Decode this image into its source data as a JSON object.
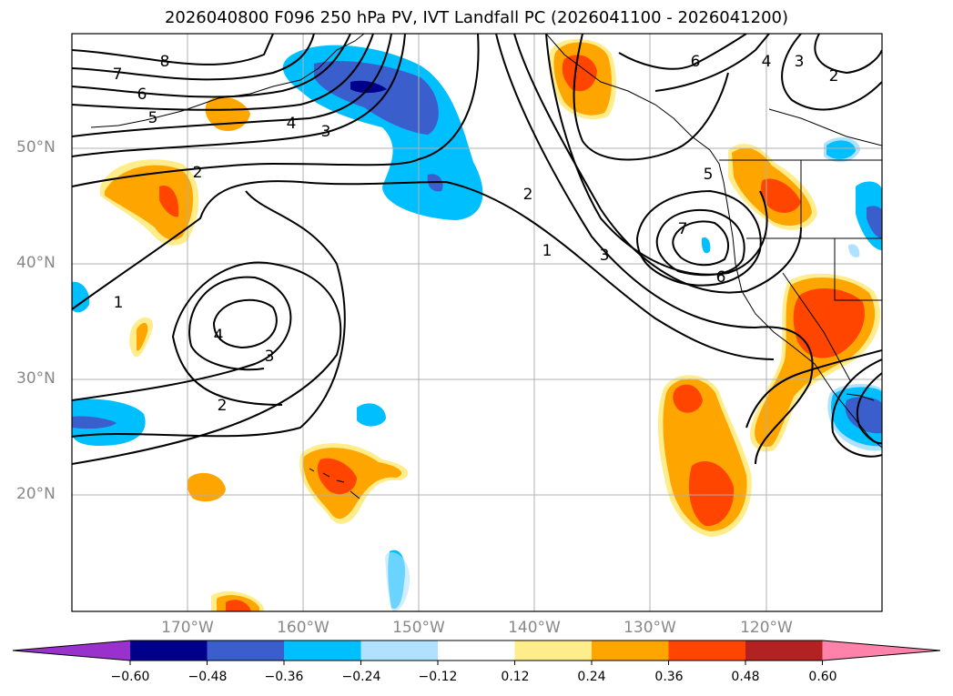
{
  "title": "2026040800 F096 250 hPa PV, IVT Landfall PC (2026041100 - 2026041200)",
  "lat_labels": [
    "50°N",
    "40°N",
    "30°N",
    "20°N"
  ],
  "lon_labels": [
    "170°W",
    "160°W",
    "150°W",
    "140°W",
    "130°W",
    "120°W"
  ],
  "colorbar": {
    "ticks": [
      "−0.60",
      "−0.48",
      "−0.36",
      "−0.24",
      "−0.12",
      "0.12",
      "0.24",
      "0.36",
      "0.48",
      "0.60"
    ],
    "colors": [
      "#9932cc",
      "#00008b",
      "#3a5fcd",
      "#00bfff",
      "#b0e2ff",
      "#ffffff",
      "#ffec8b",
      "#ffa500",
      "#ff4500",
      "#b22222",
      "#ff82ab"
    ]
  },
  "contour_labels": [
    "7",
    "8",
    "6",
    "5",
    "4",
    "3",
    "2",
    "1",
    "4",
    "3",
    "2",
    "2",
    "1",
    "3",
    "5",
    "7",
    "6",
    "6",
    "4",
    "3",
    "2"
  ]
}
